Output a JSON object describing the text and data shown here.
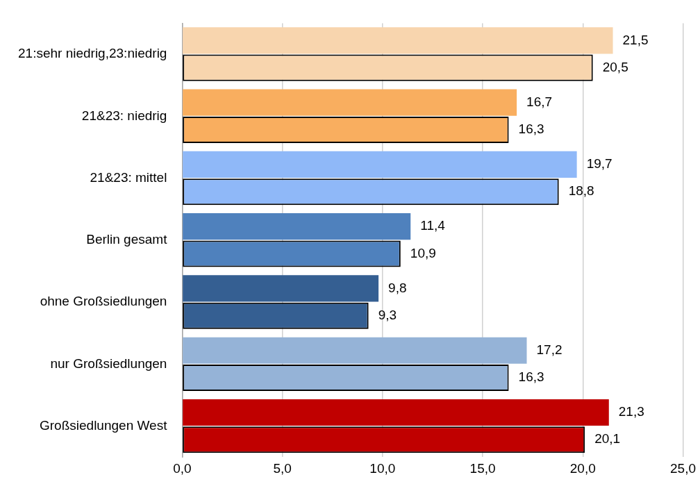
{
  "chart_data": {
    "type": "bar",
    "orientation": "horizontal",
    "categories": [
      "21:sehr niedrig,23:niedrig",
      "21&23: niedrig",
      "21&23: mittel",
      "Berlin gesamt",
      "ohne Großsiedlungen",
      "nur Großsiedlungen",
      "Großsiedlungen West"
    ],
    "series": [
      {
        "colors": [
          "#f8d5ae",
          "#f9ae5f",
          "#8fb8f8",
          "#4f81bd",
          "#355f92",
          "#95b3d7",
          "#c00000"
        ],
        "values": [
          21.5,
          16.7,
          19.7,
          11.4,
          9.8,
          17.2,
          21.3
        ],
        "value_labels": [
          "21,5",
          "16,7",
          "19,7",
          "11,4",
          "9,8",
          "17,2",
          "21,3"
        ]
      },
      {
        "colors": [
          "#f8d5ae",
          "#f9ae5f",
          "#8fb8f8",
          "#4f81bd",
          "#355f92",
          "#95b3d7",
          "#c00000"
        ],
        "values": [
          20.5,
          16.3,
          18.8,
          10.9,
          9.3,
          16.3,
          20.1
        ],
        "value_labels": [
          "20,5",
          "16,3",
          "18,8",
          "10,9",
          "9,3",
          "16,3",
          "20,1"
        ]
      }
    ],
    "xlim": [
      0,
      25
    ],
    "xticks": [
      {
        "value": 0,
        "label": "0,0"
      },
      {
        "value": 5,
        "label": "5,0"
      },
      {
        "value": 10,
        "label": "10,0"
      },
      {
        "value": 15,
        "label": "15,0"
      },
      {
        "value": 20,
        "label": "20,0"
      },
      {
        "value": 25,
        "label": "25,0"
      }
    ],
    "grid": "x",
    "legend": false
  }
}
